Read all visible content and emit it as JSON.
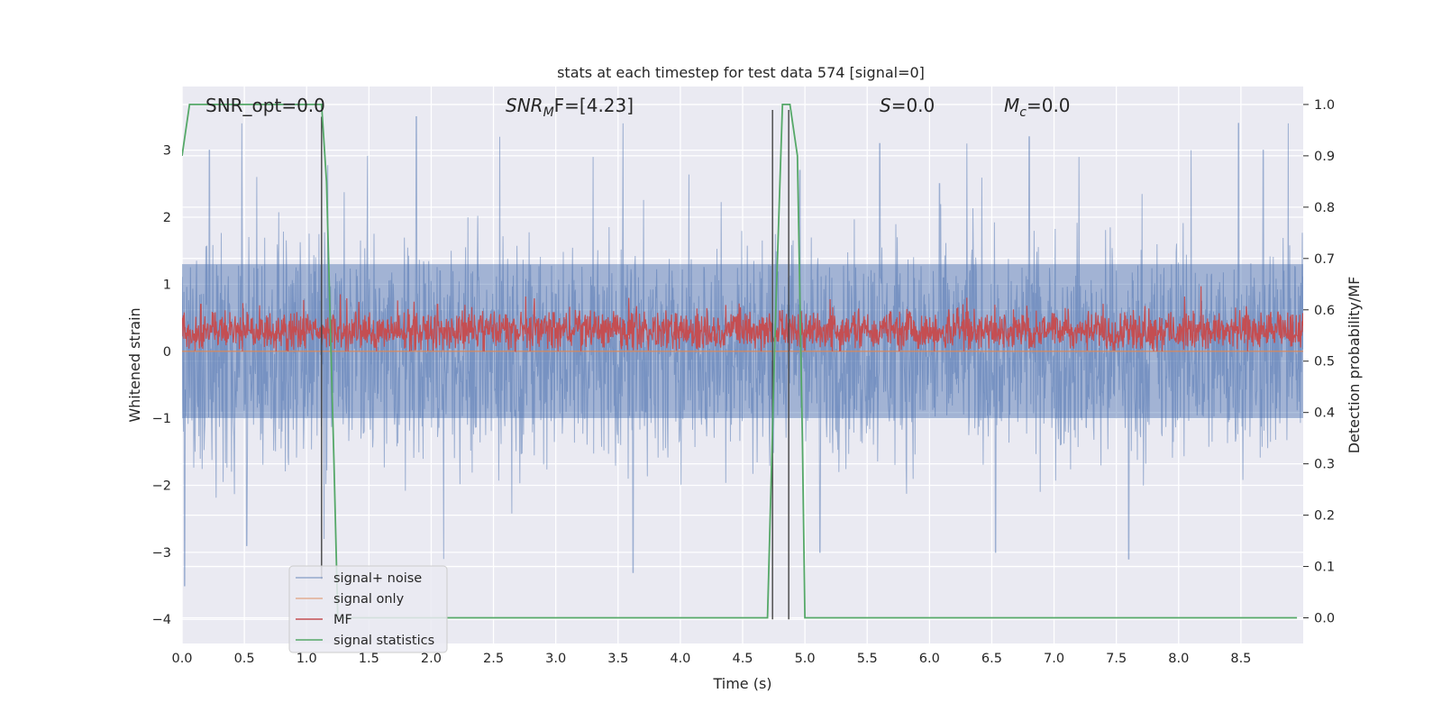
{
  "chart_data": {
    "type": "line",
    "title": "stats at each timestep for test data 574 [signal=0]",
    "xlabel": "Time (s)",
    "ylabel": "Whitened strain",
    "y2label": "Detection probability/MF",
    "xlim": [
      0.0,
      9.0
    ],
    "ylim": [
      -4.36,
      3.95
    ],
    "y2lim": [
      -0.05,
      1.035
    ],
    "xticks": [
      0.0,
      0.5,
      1.0,
      1.5,
      2.0,
      2.5,
      3.0,
      3.5,
      4.0,
      4.5,
      5.0,
      5.5,
      6.0,
      6.5,
      7.0,
      7.5,
      8.0,
      8.5
    ],
    "xtick_labels": [
      "0.0",
      "0.5",
      "1.0",
      "1.5",
      "2.0",
      "2.5",
      "3.0",
      "3.5",
      "4.0",
      "4.5",
      "5.0",
      "5.5",
      "6.0",
      "6.5",
      "7.0",
      "7.5",
      "8.0",
      "8.5"
    ],
    "yticks": [
      -4,
      -3,
      -2,
      -1,
      0,
      1,
      2,
      3
    ],
    "ytick_labels": [
      "−4",
      "−3",
      "−2",
      "−1",
      "0",
      "1",
      "2",
      "3"
    ],
    "y2ticks": [
      0.0,
      0.1,
      0.2,
      0.3,
      0.4,
      0.5,
      0.6,
      0.7,
      0.8,
      0.9,
      1.0
    ],
    "y2tick_labels": [
      "0.0",
      "0.1",
      "0.2",
      "0.3",
      "0.4",
      "0.5",
      "0.6",
      "0.7",
      "0.8",
      "0.9",
      "1.0"
    ],
    "grid": true,
    "legend_position": "lower-left",
    "annotations": [
      {
        "id": "snr-opt",
        "text": "SNR_opt=0.0"
      },
      {
        "id": "snr-mf",
        "main": "SNR",
        "sub": "M",
        "tail": "F=[4.23]"
      },
      {
        "id": "s",
        "main": "S",
        "tail": "=0.0"
      },
      {
        "id": "mc",
        "main": "M",
        "sub": "c",
        "tail": "=0.0"
      }
    ],
    "series": [
      {
        "name": "signal+ noise",
        "color": "#4c72b0",
        "axis": "left",
        "style": "dense noise, amplitude about ±2, peaks to about 3.5 and -3.5",
        "band": {
          "lower": -1.0,
          "upper": 1.3
        },
        "peaks": [
          [
            0.02,
            -3.5
          ],
          [
            0.22,
            3.0
          ],
          [
            0.48,
            3.4
          ],
          [
            0.52,
            -2.9
          ],
          [
            0.6,
            2.6
          ],
          [
            1.14,
            -2.8
          ],
          [
            1.88,
            3.5
          ],
          [
            2.1,
            -3.1
          ],
          [
            2.55,
            3.2
          ],
          [
            3.3,
            2.9
          ],
          [
            3.54,
            3.4
          ],
          [
            3.62,
            -3.3
          ],
          [
            4.96,
            2.7
          ],
          [
            5.12,
            -3.0
          ],
          [
            5.6,
            3.1
          ],
          [
            6.08,
            2.5
          ],
          [
            6.3,
            3.1
          ],
          [
            6.53,
            -3.0
          ],
          [
            6.8,
            3.2
          ],
          [
            7.2,
            2.9
          ],
          [
            7.6,
            -3.1
          ],
          [
            8.1,
            3.0
          ],
          [
            8.48,
            3.4
          ],
          [
            8.68,
            3.0
          ],
          [
            8.88,
            3.4
          ]
        ]
      },
      {
        "name": "signal only",
        "color": "#dd8452",
        "axis": "left",
        "style": "flat line at zero",
        "values": [
          [
            0.0,
            0.0
          ],
          [
            9.0,
            0.0
          ]
        ]
      },
      {
        "name": "MF",
        "color": "#c44e52",
        "axis": "left",
        "style": "noisy positive trace, mostly 0 to 0.55, peaks to about 0.97",
        "band": {
          "lower": 0.12,
          "upper": 0.48
        },
        "peaks": [
          [
            0.15,
            0.7
          ],
          [
            1.27,
            0.85
          ],
          [
            2.05,
            0.7
          ],
          [
            4.8,
            0.6
          ],
          [
            6.3,
            0.8
          ],
          [
            8.18,
            0.97
          ]
        ]
      },
      {
        "name": "signal statistics",
        "color": "#55a868",
        "axis": "right",
        "values": [
          [
            0.0,
            0.9
          ],
          [
            0.06,
            1.0
          ],
          [
            1.12,
            1.0
          ],
          [
            1.16,
            0.85
          ],
          [
            1.22,
            0.3
          ],
          [
            1.25,
            0.0
          ],
          [
            4.7,
            0.0
          ],
          [
            4.76,
            0.55
          ],
          [
            4.82,
            1.0
          ],
          [
            4.88,
            1.0
          ],
          [
            4.94,
            0.9
          ],
          [
            4.98,
            0.35
          ],
          [
            5.0,
            0.0
          ],
          [
            8.95,
            0.0
          ]
        ]
      }
    ],
    "vertical_lines": [
      {
        "x": 1.12,
        "from": -3.4,
        "to": 3.5
      },
      {
        "x": 4.74,
        "from": -4.0,
        "to": 3.6
      },
      {
        "x": 4.87,
        "from": -4.0,
        "to": 3.6
      }
    ]
  }
}
